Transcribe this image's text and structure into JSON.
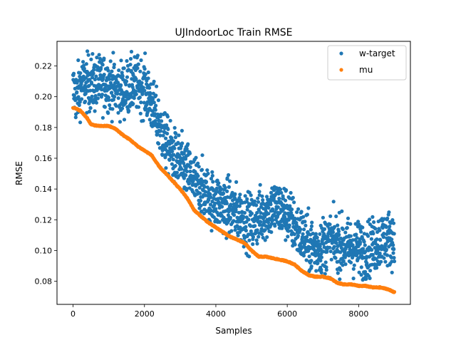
{
  "chart_data": {
    "type": "scatter",
    "title": "UJIndoorLoc Train RMSE",
    "xlabel": "Samples",
    "ylabel": "RMSE",
    "xlim": [
      -450,
      9450
    ],
    "ylim": [
      0.065,
      0.236
    ],
    "xticks": [
      0,
      2000,
      4000,
      6000,
      8000
    ],
    "yticks": [
      0.08,
      0.1,
      0.12,
      0.14,
      0.16,
      0.18,
      0.2,
      0.22
    ],
    "grid": false,
    "legend_position": "top-right",
    "series": [
      {
        "name": "w-target",
        "color": "#1f77b4",
        "trend": {
          "x": [
            0,
            100,
            200,
            400,
            600,
            800,
            1000,
            1200,
            1400,
            1600,
            1800,
            2000,
            2200,
            2400,
            2600,
            2800,
            3000,
            3200,
            3400,
            3600,
            3800,
            4000,
            4200,
            4400,
            4600,
            4800,
            5000,
            5200,
            5400,
            5600,
            5800,
            6000,
            6200,
            6400,
            6600,
            6800,
            7000,
            7200,
            7400,
            7600,
            7800,
            8000,
            8200,
            8400,
            8600,
            8800,
            9000
          ],
          "y": [
            0.205,
            0.2,
            0.207,
            0.209,
            0.208,
            0.209,
            0.209,
            0.205,
            0.204,
            0.207,
            0.208,
            0.206,
            0.195,
            0.182,
            0.17,
            0.162,
            0.157,
            0.152,
            0.145,
            0.14,
            0.135,
            0.132,
            0.13,
            0.128,
            0.124,
            0.12,
            0.118,
            0.122,
            0.125,
            0.128,
            0.127,
            0.124,
            0.116,
            0.11,
            0.104,
            0.102,
            0.104,
            0.106,
            0.105,
            0.103,
            0.102,
            0.101,
            0.1,
            0.103,
            0.107,
            0.108,
            0.107
          ],
          "noise_amplitude": 0.009,
          "point_count": 1800
        }
      },
      {
        "name": "mu",
        "color": "#ff7f0e",
        "trend": {
          "x": [
            0,
            200,
            400,
            500,
            700,
            1000,
            1200,
            1400,
            1600,
            1800,
            2000,
            2200,
            2400,
            2600,
            2800,
            3000,
            3200,
            3400,
            3600,
            3800,
            4000,
            4200,
            4400,
            4600,
            4800,
            5000,
            5200,
            5400,
            5600,
            5800,
            6000,
            6200,
            6400,
            6600,
            6800,
            7000,
            7200,
            7400,
            7600,
            7800,
            8000,
            8200,
            8400,
            8600,
            8800,
            9000
          ],
          "y": [
            0.193,
            0.191,
            0.186,
            0.182,
            0.181,
            0.181,
            0.179,
            0.175,
            0.172,
            0.168,
            0.165,
            0.162,
            0.155,
            0.15,
            0.145,
            0.14,
            0.134,
            0.126,
            0.122,
            0.118,
            0.115,
            0.112,
            0.109,
            0.107,
            0.105,
            0.1,
            0.096,
            0.096,
            0.095,
            0.094,
            0.093,
            0.091,
            0.087,
            0.084,
            0.083,
            0.083,
            0.082,
            0.079,
            0.078,
            0.078,
            0.077,
            0.077,
            0.076,
            0.076,
            0.075,
            0.073
          ],
          "noise_amplitude": 0.0006,
          "point_count": 900
        }
      }
    ]
  }
}
